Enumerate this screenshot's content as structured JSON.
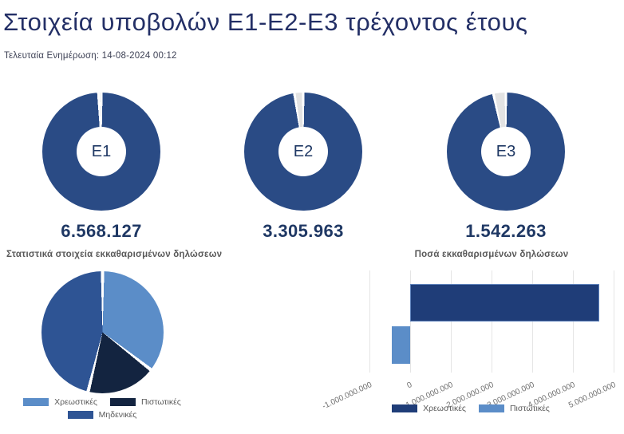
{
  "header": {
    "title": "Στοιχεία υποβολών Ε1-Ε2-Ε3 τρέχοντος έτους",
    "last_update": "Τελευταία Ενημέρωση: 14-08-2024 00:12"
  },
  "colors": {
    "donut_fill": "#2a4b85",
    "donut_rest": "#e3e3e3",
    "grid": "#e5e5e5",
    "navy_text": "#1f3864"
  },
  "chart_data": [
    {
      "type": "donut",
      "label": "E1",
      "value_display": "6.568.127",
      "value": 6568127,
      "filled_pct": 99.2
    },
    {
      "type": "donut",
      "label": "E2",
      "value_display": "3.305.963",
      "value": 3305963,
      "filled_pct": 97.6
    },
    {
      "type": "donut",
      "label": "E3",
      "value_display": "1.542.263",
      "value": 1542263,
      "filled_pct": 96.6
    },
    {
      "type": "pie",
      "title": "Στατιστικά στοιχεία εκκαθαρισμένων δηλώσεων",
      "legend_position": "bottom",
      "slices": [
        {
          "label": "Χρεωστικές",
          "pct": 35.5,
          "color": "#5b8dc8"
        },
        {
          "label": "Πιστωτικές",
          "pct": 18.3,
          "color": "#132440"
        },
        {
          "label": "Μηδενικές",
          "pct": 46.2,
          "color": "#2e5494"
        }
      ]
    },
    {
      "type": "bar",
      "title": "Ποσά εκκαθαρισμένων δηλώσεων",
      "orientation": "horizontal",
      "xlim": [
        -1000000000,
        5000000000
      ],
      "grid": true,
      "legend_position": "bottom",
      "ticks": [
        {
          "value": -1000000000,
          "label": "-1.000.000.000"
        },
        {
          "value": 0,
          "label": "0"
        },
        {
          "value": 1000000000,
          "label": "1.000.000.000"
        },
        {
          "value": 2000000000,
          "label": "2.000.000.000"
        },
        {
          "value": 3000000000,
          "label": "3.000.000.000"
        },
        {
          "value": 4000000000,
          "label": "4.000.000.000"
        },
        {
          "value": 5000000000,
          "label": "5.000.000.000"
        }
      ],
      "series": [
        {
          "name": "Χρεωστικές",
          "value": 4650000000,
          "color": "#1f3d78",
          "border": "#5d81bb"
        },
        {
          "name": "Πιστωτικές",
          "value": -460000000,
          "color": "#5b8dc8",
          "border": "#5b8dc8"
        }
      ]
    }
  ]
}
